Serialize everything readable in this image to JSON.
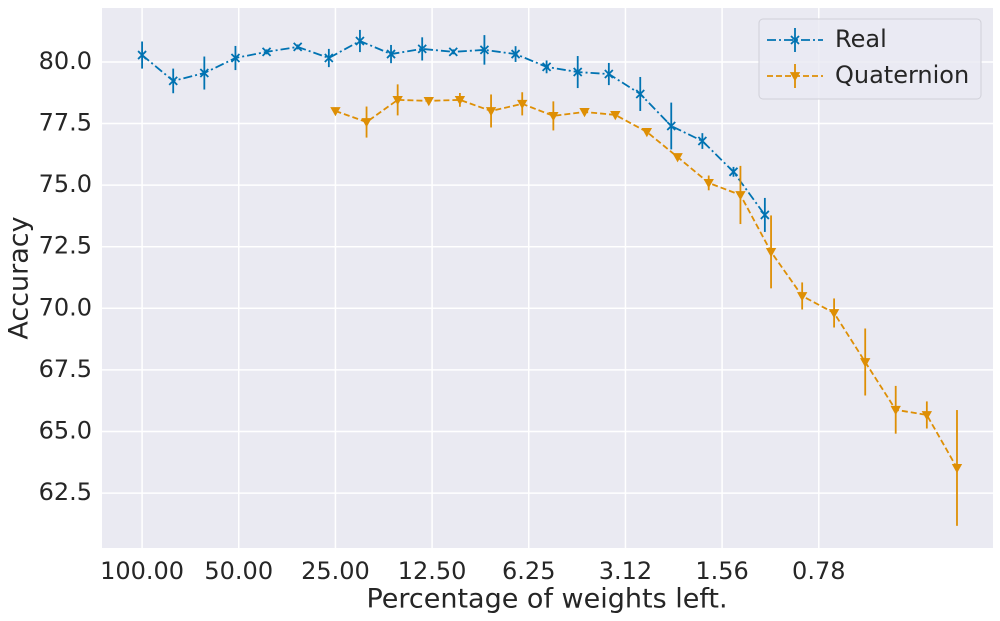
{
  "chart_data": {
    "type": "errorbar-line",
    "xlabel": "Percentage of weights left.",
    "ylabel": "Accuracy",
    "xscale": "log",
    "xlim": [
      133.3,
      0.224
    ],
    "xticks": [
      {
        "value": 100,
        "label": "100.00"
      },
      {
        "value": 50,
        "label": "50.00"
      },
      {
        "value": 25,
        "label": "25.00"
      },
      {
        "value": 12.5,
        "label": "12.50"
      },
      {
        "value": 6.25,
        "label": "6.25"
      },
      {
        "value": 3.125,
        "label": "3.12"
      },
      {
        "value": 1.5625,
        "label": "1.56"
      },
      {
        "value": 0.78125,
        "label": "0.78"
      }
    ],
    "ylim": [
      60.27,
      82.19
    ],
    "yticks": [
      {
        "value": 62.5,
        "label": "62.5"
      },
      {
        "value": 65,
        "label": "65.0"
      },
      {
        "value": 67.5,
        "label": "67.5"
      },
      {
        "value": 70,
        "label": "70.0"
      },
      {
        "value": 72.5,
        "label": "72.5"
      },
      {
        "value": 75,
        "label": "75.0"
      },
      {
        "value": 77.5,
        "label": "77.5"
      },
      {
        "value": 80,
        "label": "80.0"
      }
    ],
    "grid": true,
    "legend": "upper right",
    "series": [
      {
        "name": "Real",
        "color": "#0173b2",
        "linestyle": "dashdot",
        "marker": "x",
        "x": [
          100,
          80,
          64,
          51.2,
          40.96,
          32.77,
          26.21,
          20.97,
          16.78,
          13.42,
          10.74,
          8.59,
          6.87,
          5.5,
          4.4,
          3.52,
          2.81,
          2.25,
          1.8,
          1.44,
          1.15
        ],
        "values": [
          80.28,
          79.23,
          79.55,
          80.16,
          80.41,
          80.61,
          80.16,
          80.85,
          80.32,
          80.53,
          80.41,
          80.49,
          80.32,
          79.8,
          79.59,
          79.51,
          78.7,
          77.4,
          76.79,
          75.54,
          73.79
        ],
        "errors": [
          0.55,
          0.5,
          0.67,
          0.49,
          0.1,
          0.1,
          0.37,
          0.45,
          0.37,
          0.47,
          0.1,
          0.6,
          0.32,
          0.26,
          0.65,
          0.45,
          0.69,
          0.95,
          0.32,
          0.2,
          0.69
        ]
      },
      {
        "name": "Quaternion",
        "color": "#de8f05",
        "linestyle": "dashed",
        "marker": "v",
        "x": [
          25,
          20,
          16,
          12.8,
          10.24,
          8.19,
          6.55,
          5.24,
          4.19,
          3.36,
          2.68,
          2.15,
          1.72,
          1.37,
          1.1,
          0.88,
          0.7,
          0.56,
          0.45,
          0.36,
          0.29
        ],
        "values": [
          78.01,
          77.56,
          78.46,
          78.42,
          78.46,
          78.01,
          78.3,
          77.81,
          77.97,
          77.85,
          77.16,
          76.14,
          75.09,
          74.6,
          72.29,
          70.5,
          69.81,
          67.82,
          65.88,
          65.67,
          63.52
        ],
        "errors": [
          0.1,
          0.63,
          0.63,
          0.15,
          0.28,
          0.67,
          0.47,
          0.59,
          0.1,
          0.1,
          0.1,
          0.1,
          0.3,
          1.18,
          1.48,
          0.55,
          0.59,
          1.36,
          0.97,
          0.55,
          2.35
        ]
      }
    ]
  }
}
